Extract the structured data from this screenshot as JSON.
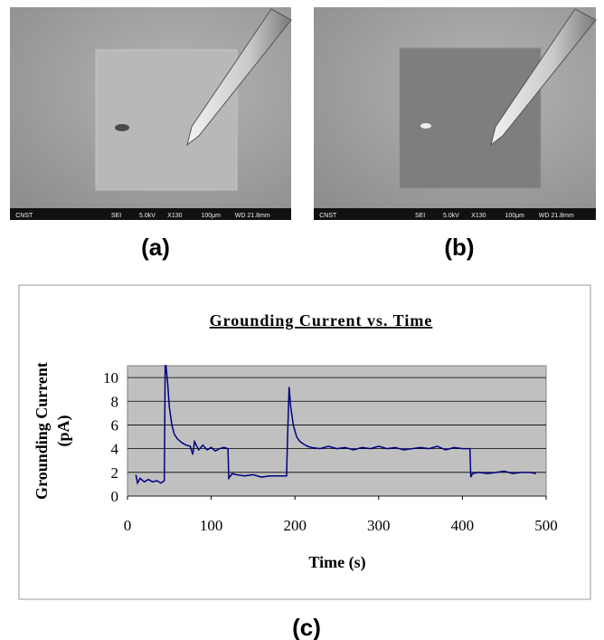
{
  "panels": [
    {
      "label": "(a)",
      "footer": [
        "CNST",
        "SEI",
        "5.0kV",
        "X130",
        "100μm",
        "WD 21.8mm"
      ]
    },
    {
      "label": "(b)",
      "footer": [
        "CNST",
        "SEI",
        "5.0kV",
        "X130",
        "100μm",
        "WD 21.8mm"
      ]
    }
  ],
  "chart_label": "(c)",
  "chart_data": {
    "type": "line",
    "title": "Grounding Current  vs.  Time",
    "xlabel": "Time (s)",
    "ylabel": [
      "Grounding Current",
      "(pA)"
    ],
    "x": [
      10,
      12,
      15,
      20,
      25,
      30,
      35,
      40,
      44,
      45,
      46,
      48,
      50,
      53,
      56,
      60,
      65,
      70,
      75,
      78,
      80,
      85,
      90,
      95,
      100,
      105,
      110,
      115,
      120,
      121,
      125,
      130,
      140,
      150,
      160,
      170,
      180,
      190,
      191,
      193,
      195,
      198,
      202,
      206,
      210,
      215,
      220,
      230,
      240,
      250,
      260,
      270,
      280,
      290,
      300,
      310,
      320,
      330,
      340,
      350,
      360,
      370,
      380,
      390,
      400,
      409,
      410,
      412,
      420,
      430,
      440,
      450,
      460,
      470,
      480,
      488
    ],
    "values": [
      1.8,
      1.1,
      1.5,
      1.2,
      1.4,
      1.2,
      1.3,
      1.1,
      1.3,
      11,
      11,
      9.5,
      7.5,
      6,
      5.2,
      4.8,
      4.5,
      4.3,
      4.2,
      3.5,
      4.6,
      3.9,
      4.3,
      3.9,
      4.1,
      3.8,
      4.0,
      4.1,
      4.0,
      1.5,
      1.9,
      1.8,
      1.7,
      1.8,
      1.6,
      1.7,
      1.7,
      1.7,
      4.5,
      9.2,
      7.5,
      6,
      5,
      4.6,
      4.4,
      4.2,
      4.1,
      4.0,
      4.2,
      4.0,
      4.1,
      3.9,
      4.1,
      4.0,
      4.2,
      4.0,
      4.1,
      3.9,
      4.0,
      4.1,
      4.0,
      4.2,
      3.9,
      4.1,
      4.0,
      4.0,
      1.6,
      1.9,
      2.0,
      1.9,
      2.0,
      2.1,
      1.9,
      2.0,
      2.0,
      1.9
    ],
    "color": "#000080",
    "xlim": [
      0,
      500
    ],
    "xticks": [
      0,
      100,
      200,
      300,
      400,
      500
    ],
    "ylim": [
      0,
      11
    ],
    "yticks": [
      0,
      2,
      4,
      6,
      8,
      10
    ],
    "grid": true,
    "background": "#c0c0c0"
  }
}
